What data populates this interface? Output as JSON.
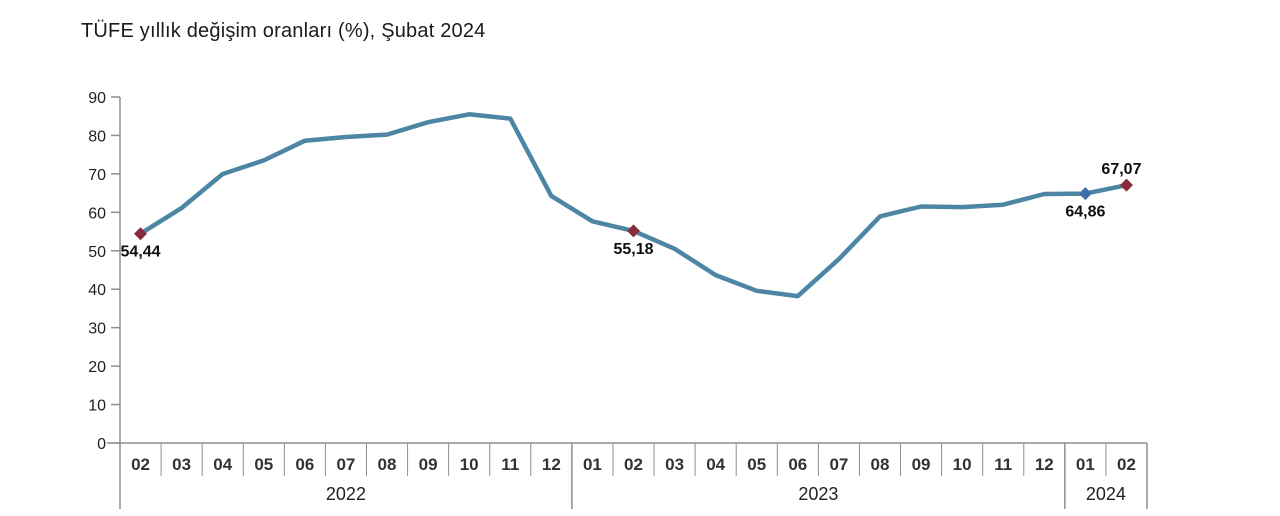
{
  "title": "TÜFE yıllık değişim oranları (%), Şubat 2024",
  "chart_data": {
    "type": "line",
    "title": "TÜFE yıllık değişim oranları (%), Şubat 2024",
    "xlabel": "",
    "ylabel": "",
    "ylim": [
      0,
      90
    ],
    "yticks": [
      0,
      10,
      20,
      30,
      40,
      50,
      60,
      70,
      80,
      90
    ],
    "grid": false,
    "legend": "none",
    "line_color": "#4d86a5",
    "axis_color": "#8f8f8f",
    "x": [
      "2022-02",
      "2022-03",
      "2022-04",
      "2022-05",
      "2022-06",
      "2022-07",
      "2022-08",
      "2022-09",
      "2022-10",
      "2022-11",
      "2022-12",
      "2023-01",
      "2023-02",
      "2023-03",
      "2023-04",
      "2023-05",
      "2023-06",
      "2023-07",
      "2023-08",
      "2023-09",
      "2023-10",
      "2023-11",
      "2023-12",
      "2024-01",
      "2024-02"
    ],
    "month_labels": [
      "02",
      "03",
      "04",
      "05",
      "06",
      "07",
      "08",
      "09",
      "10",
      "11",
      "12",
      "01",
      "02",
      "03",
      "04",
      "05",
      "06",
      "07",
      "08",
      "09",
      "10",
      "11",
      "12",
      "01",
      "02"
    ],
    "year_groups": [
      {
        "label": "2022",
        "count": 11
      },
      {
        "label": "2023",
        "count": 12
      },
      {
        "label": "2024",
        "count": 2
      }
    ],
    "values": [
      54.44,
      61.14,
      69.97,
      73.5,
      78.62,
      79.6,
      80.21,
      83.45,
      85.51,
      84.39,
      64.27,
      57.68,
      55.18,
      50.51,
      43.68,
      39.59,
      38.21,
      47.83,
      58.94,
      61.53,
      61.36,
      61.98,
      64.77,
      64.86,
      67.07
    ],
    "annotations": [
      {
        "index": 0,
        "label": "54,44",
        "position": "below",
        "marker_color": "#882c3c"
      },
      {
        "index": 12,
        "label": "55,18",
        "position": "below",
        "marker_color": "#882c3c"
      },
      {
        "index": 23,
        "label": "64,86",
        "position": "below",
        "marker_color": "#3f6fa8"
      },
      {
        "index": 24,
        "label": "67,07",
        "position": "above",
        "marker_color": "#882c3c"
      }
    ]
  }
}
